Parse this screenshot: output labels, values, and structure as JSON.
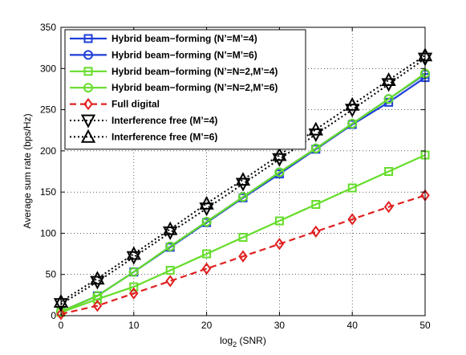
{
  "chart_data": {
    "type": "line",
    "xlabel": "log",
    "xlabel_sub": "2",
    "xlabel_rest": " (SNR)",
    "ylabel": "Average sum rate (bps/Hz)",
    "xlim": [
      0,
      50
    ],
    "ylim": [
      0,
      350
    ],
    "x_ticks": [
      0,
      10,
      20,
      30,
      40,
      50
    ],
    "y_ticks": [
      0,
      50,
      100,
      150,
      200,
      250,
      300,
      350
    ],
    "grid": true,
    "legend_position": "top-left",
    "x": [
      0,
      5,
      10,
      15,
      20,
      25,
      30,
      35,
      40,
      45,
      50
    ],
    "series": [
      {
        "name": "Hybrid beam−forming (N’=M’=4)",
        "color": "#1f3fd8",
        "dash": "solid",
        "marker": "square",
        "values": [
          5,
          24,
          53,
          83,
          113,
          143,
          172,
          202,
          232,
          259,
          289
        ]
      },
      {
        "name": "Hybrid beam−forming (N’=M’=6)",
        "color": "#1f3fd8",
        "dash": "solid",
        "marker": "circle",
        "values": [
          5,
          24,
          53,
          84,
          114,
          144,
          174,
          203,
          233,
          263,
          293
        ]
      },
      {
        "name": "Hybrid beam−forming (N’=N=2,M’=4)",
        "color": "#66dd2a",
        "dash": "solid",
        "marker": "square",
        "values": [
          4,
          20,
          35,
          55,
          75,
          95,
          115,
          135,
          155,
          175,
          195
        ]
      },
      {
        "name": "Hybrid beam−forming (N’=N=2,M’=6)",
        "color": "#66dd2a",
        "dash": "solid",
        "marker": "circle",
        "values": [
          5,
          24,
          53,
          84,
          114,
          144,
          174,
          203,
          233,
          263,
          294
        ]
      },
      {
        "name": "Full digital",
        "color": "#e02020",
        "dash": "dashed",
        "marker": "diamond",
        "values": [
          2,
          12,
          27,
          42,
          57,
          72,
          87,
          102,
          117,
          132,
          146
        ]
      },
      {
        "name": "Interference free (M’=4)",
        "color": "#000000",
        "dash": "dotted",
        "marker": "triangle-down",
        "values": [
          14,
          41,
          71,
          101,
          130,
          160,
          190,
          220,
          250,
          281,
          312
        ]
      },
      {
        "name": "Interference free (M’=6)",
        "color": "#000000",
        "dash": "dotted",
        "marker": "triangle-up",
        "values": [
          17,
          45,
          75,
          105,
          136,
          165,
          195,
          226,
          256,
          286,
          316
        ]
      }
    ]
  }
}
